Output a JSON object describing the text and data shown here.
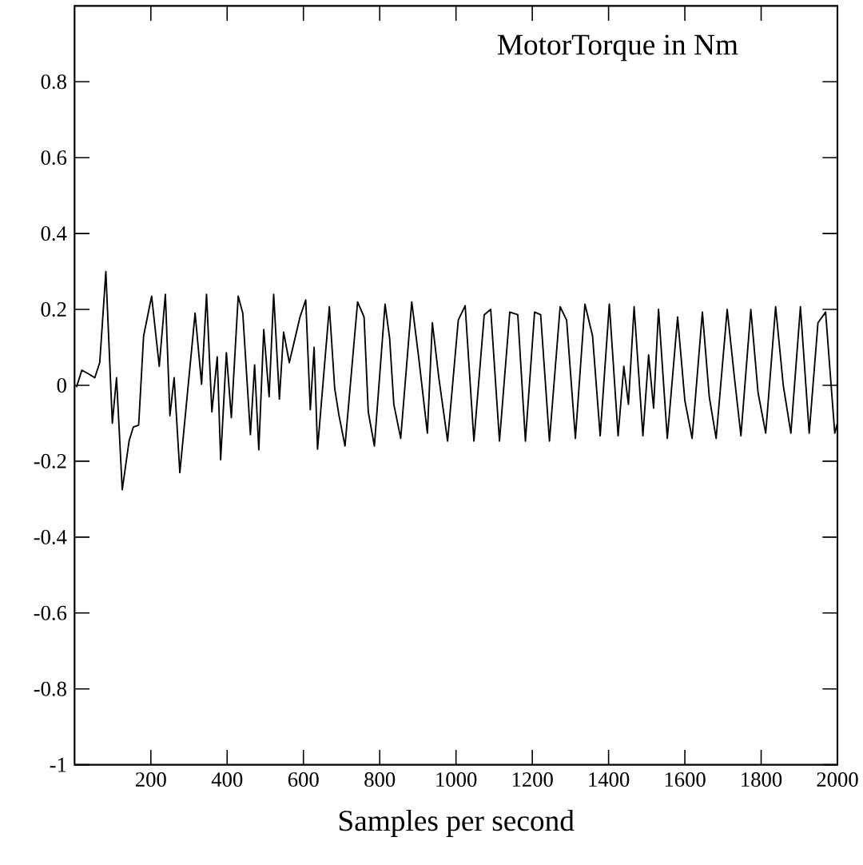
{
  "chart_data": {
    "type": "line",
    "title": "MotorTorque in Nm",
    "xlabel": "Samples per second",
    "xlim": [
      0,
      2000
    ],
    "ylim": [
      -1,
      1
    ],
    "xticks": [
      200,
      400,
      600,
      800,
      1000,
      1200,
      1400,
      1600,
      1800,
      2000
    ],
    "yticks": [
      -1,
      -0.8,
      -0.6,
      -0.4,
      -0.2,
      0,
      0.2,
      0.4,
      0.6,
      0.8
    ],
    "grid": false,
    "marker": "none",
    "line_style": "solid",
    "series": [
      {
        "color": "#000000",
        "x": [
          5,
          19,
          37,
          53,
          66,
          82,
          99,
          110,
          125,
          143,
          154,
          168,
          181,
          202,
          222,
          238,
          250,
          261,
          276,
          316,
          333,
          346,
          360,
          374,
          383,
          398,
          411,
          429,
          441,
          461,
          472,
          483,
          496,
          510,
          522,
          537,
          548,
          563,
          591,
          606,
          618,
          628,
          637,
          668,
          682,
          693,
          709,
          742,
          759,
          770,
          786,
          814,
          826,
          837,
          855,
          884,
          902,
          925,
          938,
          955,
          978,
          1006,
          1024,
          1047,
          1074,
          1091,
          1114,
          1141,
          1162,
          1182,
          1206,
          1222,
          1245,
          1273,
          1290,
          1313,
          1338,
          1358,
          1378,
          1402,
          1425,
          1440,
          1452,
          1467,
          1490,
          1505,
          1518,
          1531,
          1554,
          1581,
          1600,
          1619,
          1646,
          1664,
          1682,
          1711,
          1730,
          1747,
          1773,
          1792,
          1812,
          1838,
          1858,
          1878,
          1903,
          1926,
          1949,
          1969,
          1993,
          2000
        ],
        "values": [
          -0.005,
          0.04,
          0.03,
          0.02,
          0.06,
          0.3,
          -0.1,
          0.02,
          -0.275,
          -0.146,
          -0.11,
          -0.105,
          0.13,
          0.235,
          0.05,
          0.24,
          -0.08,
          0.02,
          -0.23,
          0.19,
          0.003,
          0.24,
          -0.07,
          0.075,
          -0.196,
          0.086,
          -0.085,
          0.235,
          0.19,
          -0.13,
          0.054,
          -0.17,
          0.147,
          -0.03,
          0.24,
          -0.036,
          0.14,
          0.06,
          0.18,
          0.225,
          -0.064,
          0.1,
          -0.168,
          0.207,
          -0.008,
          -0.078,
          -0.16,
          0.22,
          0.18,
          -0.07,
          -0.16,
          0.214,
          0.124,
          -0.05,
          -0.14,
          0.22,
          0.075,
          -0.126,
          0.165,
          0.02,
          -0.147,
          0.172,
          0.21,
          -0.147,
          0.186,
          0.2,
          -0.147,
          0.193,
          0.186,
          -0.147,
          0.193,
          0.186,
          -0.147,
          0.207,
          0.172,
          -0.14,
          0.214,
          0.13,
          -0.133,
          0.214,
          -0.133,
          0.05,
          -0.05,
          0.207,
          -0.133,
          0.08,
          -0.06,
          0.2,
          -0.14,
          0.18,
          -0.04,
          -0.14,
          0.193,
          -0.03,
          -0.14,
          0.2,
          0.02,
          -0.133,
          0.2,
          -0.02,
          -0.126,
          0.207,
          0.0,
          -0.126,
          0.207,
          -0.126,
          0.165,
          0.193,
          -0.126,
          -0.1
        ]
      }
    ]
  }
}
